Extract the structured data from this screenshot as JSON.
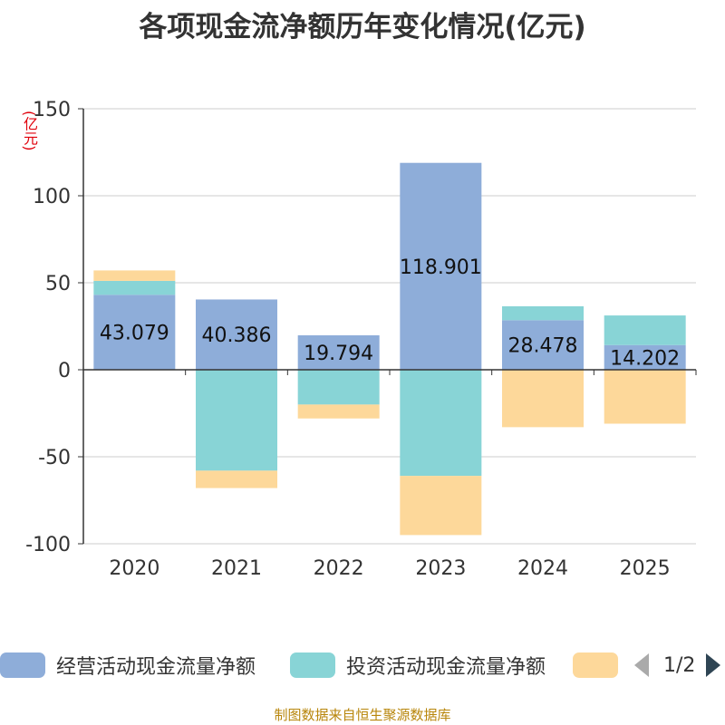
{
  "title": "各项现金流净额历年变化情况(亿元)",
  "unit": "(亿元)",
  "legend": {
    "items": [
      {
        "label": "经营活动现金流量净额",
        "color": "#8eadd9"
      },
      {
        "label": "投资活动现金流量净额",
        "color": "#88d4d6"
      },
      {
        "label": "",
        "color": "#fdd89a"
      }
    ],
    "page": "1/2"
  },
  "footer": "制图数据来自恒生聚源数据库",
  "chart_data": {
    "type": "bar",
    "stacked": true,
    "categories": [
      "2020",
      "2021",
      "2022",
      "2023",
      "2024",
      "2025"
    ],
    "ylim": [
      -100,
      150
    ],
    "yticks": [
      -100,
      -50,
      0,
      50,
      100,
      150
    ],
    "grid": true,
    "series": [
      {
        "name": "经营活动现金流量净额",
        "color": "#8eadd9",
        "values": [
          43.079,
          40.386,
          19.794,
          118.901,
          28.478,
          14.202
        ],
        "labels": [
          "43.079",
          "40.386",
          "19.794",
          "118.901",
          "28.478",
          "14.202"
        ]
      },
      {
        "name": "投资活动现金流量净额",
        "color": "#88d4d6",
        "values": [
          8,
          -58,
          -20,
          -61,
          8,
          17
        ]
      },
      {
        "name": "",
        "color": "#fdd89a",
        "values": [
          6,
          -10,
          -8,
          -34,
          -33,
          -31
        ]
      }
    ]
  }
}
